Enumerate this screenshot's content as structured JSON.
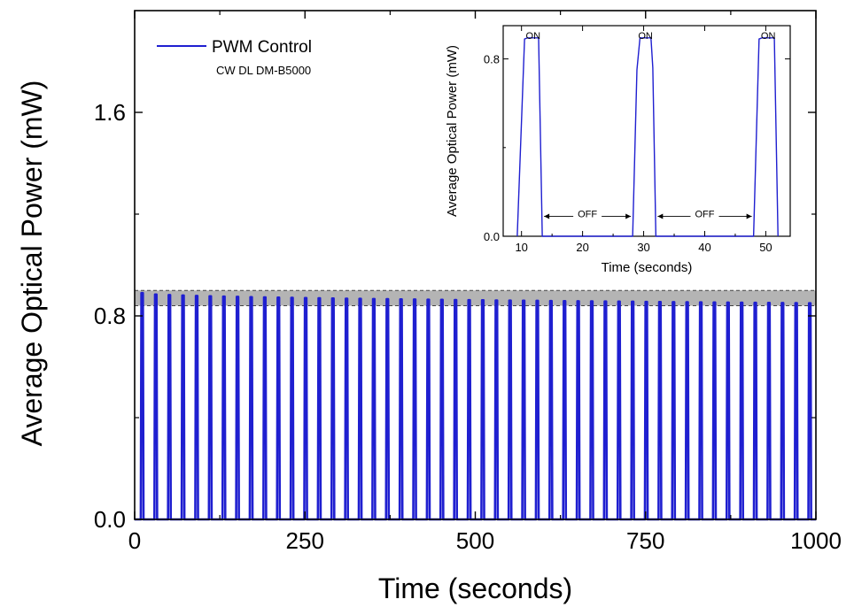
{
  "chart_data": [
    {
      "type": "line",
      "xlabel": "Time (seconds)",
      "ylabel": "Average Optical Power (mW)",
      "xlim": [
        0,
        1000
      ],
      "ylim": [
        0,
        2.0
      ],
      "xticks": [
        0,
        250,
        500,
        750,
        1000
      ],
      "xtick_labels": [
        "0",
        "250",
        "500",
        "750",
        "1000"
      ],
      "yticks": [
        0.0,
        0.8,
        1.6
      ],
      "ytick_labels": [
        "0.0",
        "0.8",
        "1.6"
      ],
      "series": [
        {
          "name": "PWM Control",
          "color": "#1f1fd0",
          "pulse_period_s": 20,
          "pulse_on_s": 4,
          "first_pulse_start_s": 9,
          "peak_power_start_mw": 0.89,
          "peak_power_end_mw": 0.85,
          "off_power_mw": 0.0
        }
      ],
      "legend": {
        "label": "PWM Control",
        "sublabel": "CW DL DM-B5000",
        "placement": "top-left"
      },
      "shaded_band": {
        "y_min": 0.84,
        "y_max": 0.9,
        "color": "#b4b4b4"
      }
    },
    {
      "type": "line",
      "placement": "inset-top-right",
      "xlabel": "Time (seconds)",
      "ylabel": "Average Optical Power (mW)",
      "xlim": [
        7,
        54
      ],
      "ylim": [
        0,
        0.95
      ],
      "xticks": [
        10,
        20,
        30,
        40,
        50
      ],
      "xtick_labels": [
        "10",
        "20",
        "30",
        "40",
        "50"
      ],
      "yticks": [
        0.0,
        0.8
      ],
      "ytick_labels": [
        "0.0",
        "0.8"
      ],
      "series": [
        {
          "name": "",
          "color": "#1f1fd0",
          "x": [
            9.3,
            10.5,
            11.0,
            12.8,
            13.4,
            28.2,
            28.9,
            29.4,
            31.2,
            31.5,
            32.0,
            48.0,
            48.9,
            49.4,
            51.4,
            52.0
          ],
          "y": [
            0.0,
            0.89,
            0.895,
            0.895,
            0.0,
            0.0,
            0.75,
            0.895,
            0.895,
            0.76,
            0.0,
            0.0,
            0.89,
            0.895,
            0.895,
            0.0
          ]
        }
      ],
      "annotations": {
        "on": "ON",
        "off": "OFF",
        "on_positions_s": [
          11.9,
          30.3,
          50.4
        ],
        "off_spans_s": [
          [
            13.4,
            28.2
          ],
          [
            32.0,
            48.0
          ]
        ],
        "off_arrow_y_mw": 0.09
      }
    }
  ]
}
